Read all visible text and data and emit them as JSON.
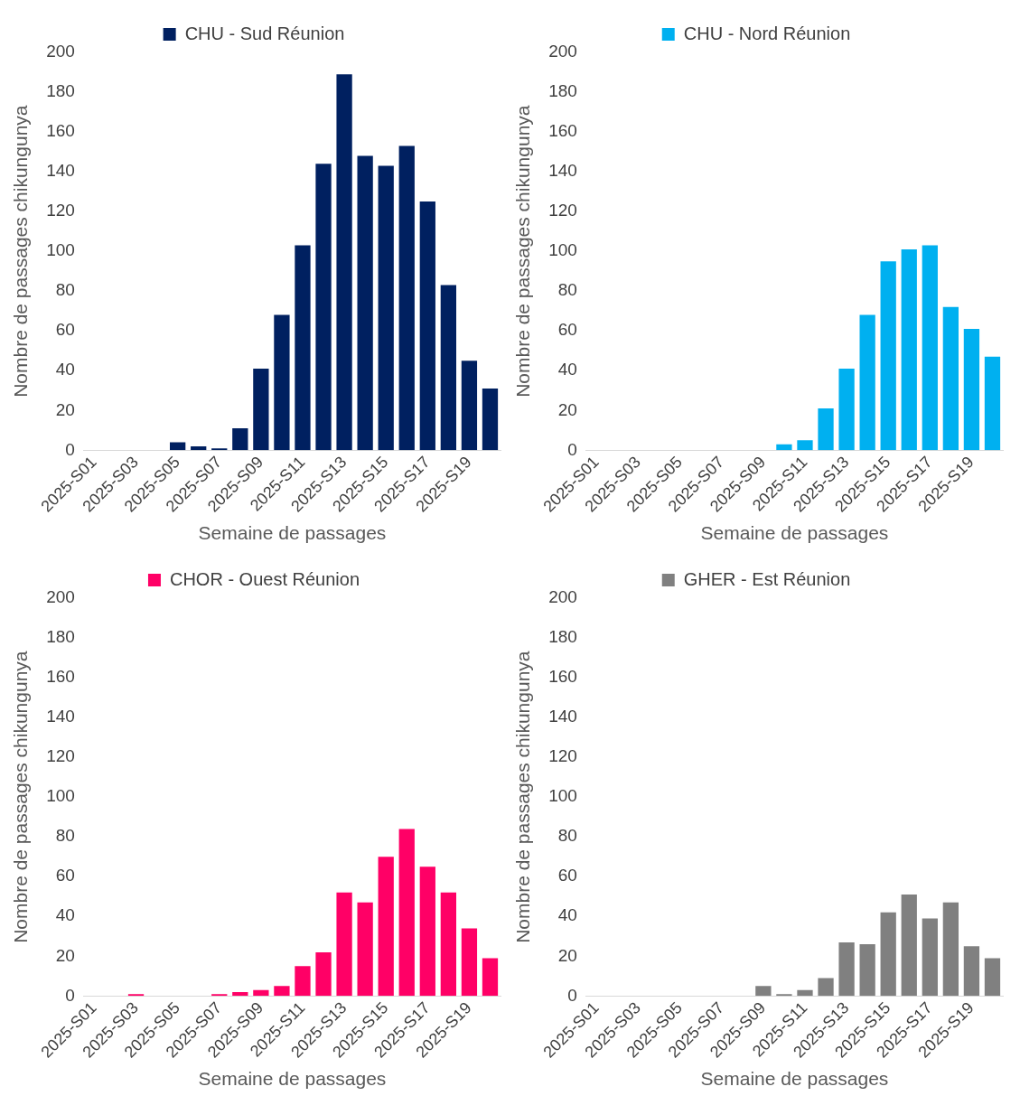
{
  "chart_data": [
    {
      "type": "bar",
      "xlabel": "Semaine de passages",
      "ylabel": "Nombre de passages chikungunya",
      "categories": [
        "2025-S01",
        null,
        "2025-S03",
        null,
        "2025-S05",
        null,
        "2025-S07",
        null,
        "2025-S09",
        null,
        "2025-S11",
        null,
        "2025-S13",
        null,
        "2025-S15",
        null,
        "2025-S17",
        null,
        "2025-S19",
        null
      ],
      "series": [
        {
          "name": "CHU - Sud Réunion",
          "color": "#002060",
          "values": [
            0,
            0,
            0,
            0,
            4,
            2,
            1,
            11,
            41,
            68,
            103,
            144,
            189,
            148,
            143,
            153,
            125,
            83,
            45,
            31
          ]
        }
      ],
      "ylim": [
        0,
        200
      ],
      "yticks": [
        0,
        20,
        40,
        60,
        80,
        100,
        120,
        140,
        160,
        180,
        200
      ],
      "legend": "top",
      "grid": false
    },
    {
      "type": "bar",
      "xlabel": "Semaine de passages",
      "ylabel": "Nombre de passages chikungunya",
      "categories": [
        "2025-S01",
        null,
        "2025-S03",
        null,
        "2025-S05",
        null,
        "2025-S07",
        null,
        "2025-S09",
        null,
        "2025-S11",
        null,
        "2025-S13",
        null,
        "2025-S15",
        null,
        "2025-S17",
        null,
        "2025-S19",
        null
      ],
      "series": [
        {
          "name": "CHU - Nord Réunion",
          "color": "#00b0f0",
          "values": [
            0,
            0,
            0,
            0,
            0,
            0,
            0,
            0,
            0,
            3,
            5,
            21,
            41,
            68,
            95,
            101,
            103,
            72,
            61,
            47
          ]
        }
      ],
      "ylim": [
        0,
        200
      ],
      "yticks": [
        0,
        20,
        40,
        60,
        80,
        100,
        120,
        140,
        160,
        180,
        200
      ],
      "legend": "top",
      "grid": false
    },
    {
      "type": "bar",
      "xlabel": "Semaine de passages",
      "ylabel": "Nombre de passages chikungunya",
      "categories": [
        "2025-S01",
        null,
        "2025-S03",
        null,
        "2025-S05",
        null,
        "2025-S07",
        null,
        "2025-S09",
        null,
        "2025-S11",
        null,
        "2025-S13",
        null,
        "2025-S15",
        null,
        "2025-S17",
        null,
        "2025-S19",
        null
      ],
      "series": [
        {
          "name": "CHOR - Ouest Réunion",
          "color": "#ff0066",
          "values": [
            0,
            0,
            1,
            0,
            0,
            0,
            1,
            2,
            3,
            5,
            15,
            22,
            52,
            47,
            70,
            84,
            65,
            52,
            34,
            19
          ]
        }
      ],
      "ylim": [
        0,
        200
      ],
      "yticks": [
        0,
        20,
        40,
        60,
        80,
        100,
        120,
        140,
        160,
        180,
        200
      ],
      "legend": "top",
      "grid": false
    },
    {
      "type": "bar",
      "xlabel": "Semaine de passages",
      "ylabel": "Nombre de passages chikungunya",
      "categories": [
        "2025-S01",
        null,
        "2025-S03",
        null,
        "2025-S05",
        null,
        "2025-S07",
        null,
        "2025-S09",
        null,
        "2025-S11",
        null,
        "2025-S13",
        null,
        "2025-S15",
        null,
        "2025-S17",
        null,
        "2025-S19",
        null
      ],
      "series": [
        {
          "name": "GHER - Est Réunion",
          "color": "#808080",
          "values": [
            0,
            0,
            0,
            0,
            0,
            0,
            0,
            0,
            5,
            1,
            3,
            9,
            27,
            26,
            42,
            51,
            39,
            47,
            25,
            19
          ]
        }
      ],
      "ylim": [
        0,
        200
      ],
      "yticks": [
        0,
        20,
        40,
        60,
        80,
        100,
        120,
        140,
        160,
        180,
        200
      ],
      "legend": "top",
      "grid": false
    }
  ]
}
